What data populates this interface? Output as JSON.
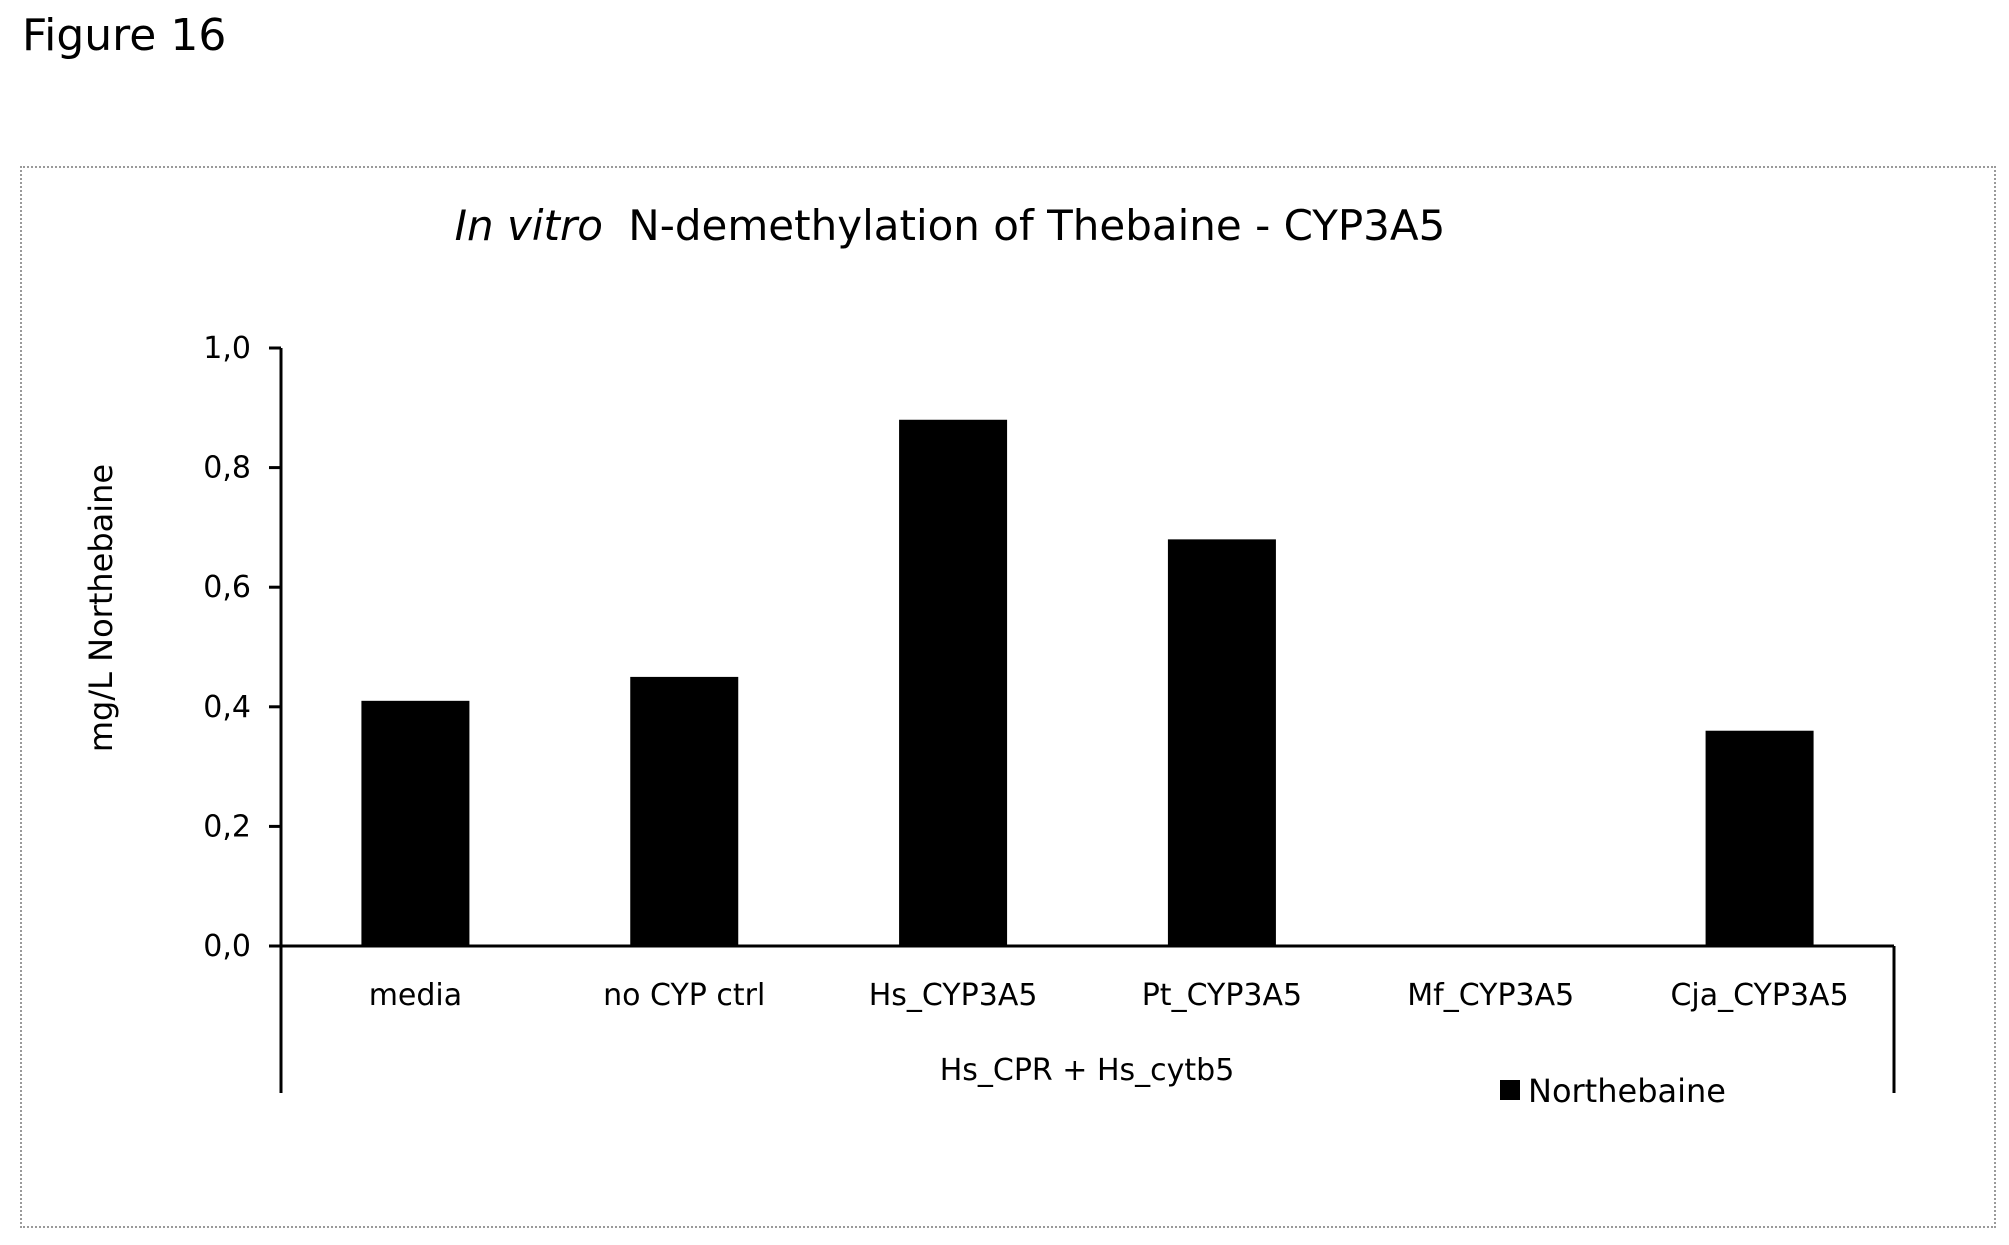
{
  "figure_label": "Figure 16",
  "chart_data": {
    "type": "bar",
    "title_italic": "In vitro",
    "title_rest": "N-demethylation of Thebaine - CYP3A5",
    "ylabel": "mg/L Northebaine",
    "ylim": [
      0,
      1.0
    ],
    "yticks": [
      "0,0",
      "0,2",
      "0,4",
      "0,6",
      "0,8",
      "1,0"
    ],
    "categories": [
      "media",
      "no CYP ctrl",
      "Hs_CYP3A5",
      "Pt_CYP3A5",
      "Mf_CYP3A5",
      "Cja_CYP3A5"
    ],
    "group_label": "Hs_CPR + Hs_cytb5",
    "series": [
      {
        "name": "Northebaine",
        "values": [
          0.41,
          0.45,
          0.88,
          0.68,
          0.0,
          0.36
        ],
        "color": "#000000"
      }
    ],
    "grid": false,
    "legend_position": "bottom-right"
  }
}
